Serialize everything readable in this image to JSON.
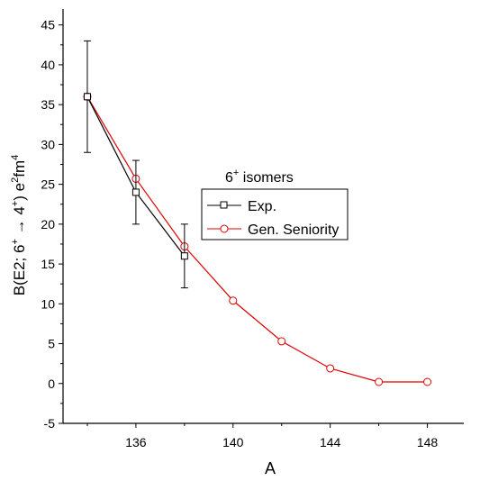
{
  "chart_data": {
    "type": "line",
    "xlabel": "A",
    "ylabel": {
      "main": "B(E2; 6",
      "sup1": "+",
      "arrow": " → 4",
      "sup2": "+",
      "mid": ") e",
      "sup3": "2",
      "unit": "fm",
      "sup4": "4"
    },
    "xlim": [
      133,
      149.5
    ],
    "ylim": [
      -5,
      47
    ],
    "xticks": [
      136,
      140,
      144,
      148
    ],
    "yticks": [
      -5,
      0,
      5,
      10,
      15,
      20,
      25,
      30,
      35,
      40,
      45
    ],
    "legend": {
      "title_base": "6",
      "title_sup": "+",
      "title_rest": " isomers",
      "position": "center-right"
    },
    "series": [
      {
        "name": "Exp.",
        "color": "#000000",
        "marker": "square",
        "x": [
          134,
          136,
          138
        ],
        "y": [
          36,
          24,
          16
        ],
        "yerr": [
          7,
          4,
          4
        ]
      },
      {
        "name": "Gen. Seniority",
        "color": "#e00000",
        "marker": "circle",
        "x": [
          134,
          136,
          138,
          140,
          142,
          144,
          146,
          148
        ],
        "y": [
          36,
          25.7,
          17.2,
          10.4,
          5.3,
          1.9,
          0.2,
          0.2
        ]
      }
    ]
  }
}
